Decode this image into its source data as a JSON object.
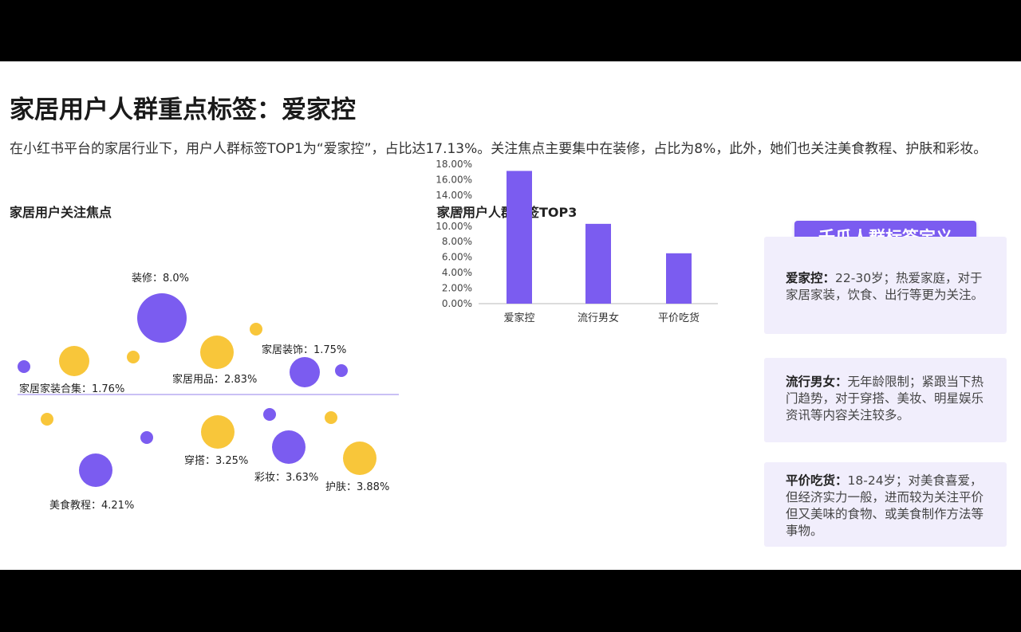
{
  "title": "家居用户人群重点标签：爱家控",
  "description": "在小红书平台的家居行业下，用户人群标签TOP1为“爱家控”，占比达17.13%。关注焦点主要集中在装修，占比为8%，此外，她们也关注美食教程、护肤和彩妆。",
  "colors": {
    "purple": "#7b5cf0",
    "yellow": "#f8c63a",
    "card_bg": "#f1eefc",
    "axis": "#d0d0d0"
  },
  "bubble_chart": {
    "title": "家居用户关注焦点",
    "labels": [
      {
        "text": "装修：8.0%"
      },
      {
        "text": "家居装饰：1.75%"
      },
      {
        "text": "家居用品：2.83%"
      },
      {
        "text": "家居家装合集：1.76%"
      },
      {
        "text": "穿搭：3.25%"
      },
      {
        "text": "彩妆：3.63%"
      },
      {
        "text": "护肤：3.88%"
      },
      {
        "text": "美食教程：4.21%"
      }
    ]
  },
  "chart_data": [
    {
      "type": "scatter",
      "title": "家居用户关注焦点",
      "series": [
        {
          "name": "装修",
          "value": 8.0
        },
        {
          "name": "家居装饰",
          "value": 1.75
        },
        {
          "name": "家居用品",
          "value": 2.83
        },
        {
          "name": "家居家装合集",
          "value": 1.76
        },
        {
          "name": "穿搭",
          "value": 3.25
        },
        {
          "name": "彩妆",
          "value": 3.63
        },
        {
          "name": "护肤",
          "value": 3.88
        },
        {
          "name": "美食教程",
          "value": 4.21
        }
      ]
    },
    {
      "type": "bar",
      "title": "家居用户人群标签TOP3",
      "categories": [
        "爱家控",
        "流行男女",
        "平价吃货"
      ],
      "values": [
        17.13,
        10.3,
        6.5
      ],
      "ylim": [
        0,
        18
      ],
      "yticks": [
        "0.00%",
        "2.00%",
        "4.00%",
        "6.00%",
        "8.00%",
        "10.00%",
        "12.00%",
        "14.00%",
        "16.00%",
        "18.00%"
      ]
    }
  ],
  "definitions": {
    "title": "千瓜人群标签定义",
    "items": [
      {
        "term": "爱家控：",
        "text": "22-30岁；热爱家庭，对于家居家装，饮食、出行等更为关注。"
      },
      {
        "term": "流行男女：",
        "text": "无年龄限制；紧跟当下热门趋势，对于穿搭、美妆、明星娱乐资讯等内容关注较多。"
      },
      {
        "term": "平价吃货：",
        "text": "18-24岁；对美食喜爱，但经济实力一般，进而较为关注平价但又美味的食物、或美食制作方法等事物。"
      }
    ]
  }
}
